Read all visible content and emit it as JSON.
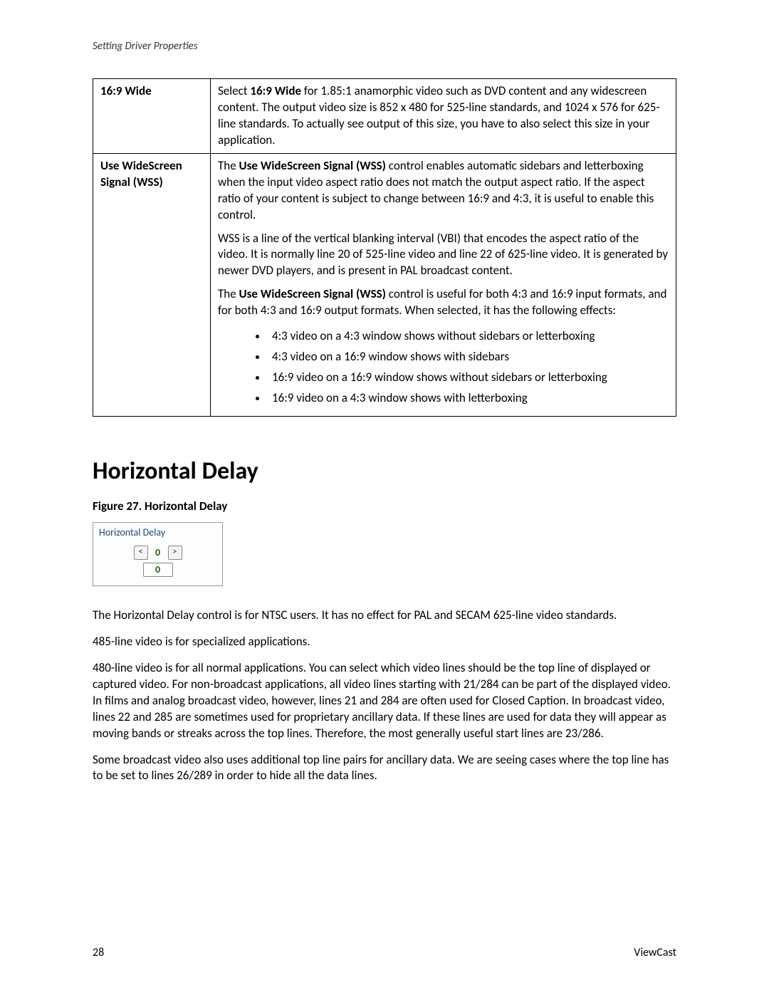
{
  "header": {
    "breadcrumb": "Setting Driver Properties"
  },
  "table": {
    "rows": [
      {
        "label": "16:9 Wide",
        "paras": [
          {
            "segments": [
              {
                "t": "Select "
              },
              {
                "t": "16:9 Wide",
                "b": true
              },
              {
                "t": " for 1.85:1 anamorphic video such as DVD content and any widescreen content. The output video size is 852 x 480 for 525-line standards, and 1024 x 576 for 625-line standards. To actually see output of this size, you have to also select this size in your application."
              }
            ]
          }
        ]
      },
      {
        "label": "Use WideScreen Signal (WSS)",
        "paras": [
          {
            "segments": [
              {
                "t": "The "
              },
              {
                "t": "Use WideScreen Signal (WSS)",
                "b": true
              },
              {
                "t": " control enables automatic sidebars and letterboxing when the input video aspect ratio does not match the output aspect ratio. If the aspect ratio of your content is subject to change between 16:9 and 4:3, it is useful to enable this control."
              }
            ]
          },
          {
            "segments": [
              {
                "t": "WSS is a line of the vertical blanking interval (VBI) that encodes the aspect ratio of the video. It is normally line 20 of 525-line video and line 22 of 625-line video. It is generated by newer DVD players, and is present in PAL broadcast content."
              }
            ]
          },
          {
            "segments": [
              {
                "t": "The "
              },
              {
                "t": "Use WideScreen Signal (WSS)",
                "b": true
              },
              {
                "t": " control is useful for both 4:3 and 16:9 input formats, and for both 4:3 and 16:9 output formats. When selected, it has the following effects:"
              }
            ]
          }
        ],
        "bullets": [
          "4:3 video on a 4:3 window shows without sidebars or letterboxing",
          "4:3 video on a 16:9 window shows with sidebars",
          "16:9 video on a 16:9 window shows without sidebars or letterboxing",
          "16:9 video on a 4:3 window shows with letterboxing"
        ]
      }
    ]
  },
  "section": {
    "title": "Horizontal Delay"
  },
  "figure": {
    "caption": "Figure 27. Horizontal Delay",
    "widget_title": "Horizontal Delay",
    "stepper_value": "0",
    "readout_value": "0"
  },
  "body": {
    "p1": "The Horizontal Delay control is for NTSC users. It has no effect for PAL and SECAM 625-line video standards.",
    "p2": "485-line video is for specialized applications.",
    "p3": "480-line video is for all normal applications. You can select which video lines should be the top line of displayed or captured video. For non-broadcast applications, all video lines starting with 21/284 can be part of the displayed video. In films and analog broadcast video, however, lines 21 and 284 are often used for Closed Caption. In broadcast video, lines 22 and 285 are sometimes used for proprietary ancillary data. If these lines are used for data they will appear as moving bands or streaks across the top lines. Therefore, the most generally useful start lines are 23/286.",
    "p4": "Some broadcast video also uses additional top line pairs for ancillary data. We are seeing cases where the top line has to be set to lines 26/289 in order to hide all the data lines."
  },
  "footer": {
    "page": "28",
    "brand": "ViewCast"
  }
}
